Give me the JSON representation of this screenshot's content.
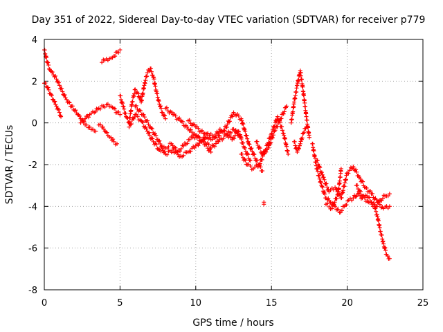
{
  "chart_data": {
    "type": "scatter",
    "title": "Day 351 of 2022, Sidereal Day-to-day VTEC variation (SDTVAR) for receiver p779",
    "xlabel": "GPS time / hours",
    "ylabel": "SDTVAR / TECUs",
    "xlim": [
      0,
      25
    ],
    "ylim": [
      -8,
      4
    ],
    "xticks": [
      0,
      5,
      10,
      15,
      20,
      25
    ],
    "yticks": [
      -8,
      -6,
      -4,
      -2,
      0,
      2,
      4
    ],
    "grid": true,
    "marker": "+",
    "color": "#ff0000",
    "series": [
      {
        "name": "trace-a",
        "x": [
          0.0,
          0.2,
          0.4,
          0.6,
          0.8,
          1.0,
          1.2,
          1.4,
          1.6,
          1.8,
          2.0,
          2.2,
          2.4,
          2.6,
          2.8,
          3.0,
          3.2,
          3.4
        ],
        "y": [
          3.5,
          2.9,
          2.5,
          2.3,
          2.1,
          1.8,
          1.5,
          1.2,
          1.0,
          0.8,
          0.6,
          0.4,
          0.2,
          0.0,
          -0.1,
          -0.2,
          -0.3,
          -0.4
        ]
      },
      {
        "name": "trace-b",
        "x": [
          0.0,
          0.2,
          0.4,
          0.6,
          0.8,
          1.0,
          1.1
        ],
        "y": [
          1.9,
          1.7,
          1.4,
          1.1,
          0.8,
          0.5,
          0.3
        ]
      },
      {
        "name": "trace-c",
        "x": [
          2.4,
          2.7,
          3.0,
          3.3,
          3.6,
          3.9,
          4.2,
          4.4,
          4.6,
          4.8,
          5.0
        ],
        "y": [
          0.0,
          0.2,
          0.4,
          0.5,
          0.7,
          0.8,
          0.9,
          0.8,
          0.7,
          0.5,
          0.4
        ]
      },
      {
        "name": "trace-d",
        "x": [
          3.6,
          3.8,
          4.0,
          4.2,
          4.4,
          4.6,
          4.8
        ],
        "y": [
          -0.1,
          -0.2,
          -0.4,
          -0.6,
          -0.7,
          -0.9,
          -1.0
        ]
      },
      {
        "name": "trace-e",
        "x": [
          3.8,
          4.0,
          4.2,
          4.4,
          4.6,
          4.8,
          5.0
        ],
        "y": [
          2.9,
          3.0,
          3.0,
          3.1,
          3.2,
          3.4,
          3.5
        ]
      },
      {
        "name": "trace-f",
        "x": [
          5.0,
          5.2,
          5.4,
          5.6,
          5.8,
          6.0,
          6.2,
          6.4,
          6.6,
          6.8,
          7.0,
          7.2,
          7.4,
          7.6,
          7.8,
          8.0
        ],
        "y": [
          1.3,
          0.8,
          0.3,
          0.0,
          1.0,
          1.6,
          1.4,
          1.0,
          1.8,
          2.4,
          2.6,
          2.2,
          1.5,
          0.9,
          0.5,
          0.2
        ]
      },
      {
        "name": "trace-g",
        "x": [
          5.6,
          6.0,
          6.4,
          6.8,
          7.2,
          7.6,
          8.0,
          8.4,
          8.8,
          9.2,
          9.6,
          10.0,
          10.4,
          10.8,
          11.2,
          11.6,
          12.0,
          12.4,
          12.8,
          13.2,
          13.6
        ],
        "y": [
          -0.2,
          0.4,
          0.1,
          -0.4,
          -0.9,
          -1.3,
          -1.2,
          -1.0,
          -1.4,
          -1.1,
          -0.8,
          -0.6,
          -0.9,
          -0.5,
          -0.7,
          -0.3,
          -0.5,
          -0.8,
          -0.4,
          -1.2,
          -1.8
        ]
      },
      {
        "name": "trace-h",
        "x": [
          6.0,
          6.5,
          7.0,
          7.5,
          8.0,
          8.5,
          9.0,
          9.5,
          10.0,
          10.5,
          11.0,
          11.5,
          12.0,
          12.5,
          13.0
        ],
        "y": [
          0.8,
          0.4,
          -0.2,
          -0.8,
          -1.5,
          -1.3,
          -1.6,
          -1.4,
          -1.1,
          -0.8,
          -1.2,
          -0.9,
          -0.6,
          -0.3,
          -0.7
        ]
      },
      {
        "name": "trace-i",
        "x": [
          8.0,
          8.5,
          9.0,
          9.5,
          10.0,
          10.5,
          11.0
        ],
        "y": [
          0.7,
          0.4,
          0.1,
          -0.3,
          -0.6,
          -0.9,
          -1.4
        ]
      },
      {
        "name": "trace-j",
        "x": [
          9.5,
          10.0,
          10.5,
          11.0,
          11.5,
          12.0,
          12.5,
          13.0,
          13.5,
          14.0,
          14.4
        ],
        "y": [
          0.1,
          -0.2,
          -0.5,
          -0.8,
          -0.6,
          -0.2,
          0.5,
          0.2,
          -1.0,
          -1.8,
          -2.3
        ]
      },
      {
        "name": "trace-k",
        "x": [
          13.0,
          13.4,
          13.8,
          14.2,
          14.6,
          15.0,
          15.4,
          15.8,
          16.1
        ],
        "y": [
          -1.5,
          -2.0,
          -2.2,
          -2.0,
          -1.3,
          -0.5,
          0.3,
          -0.5,
          -1.5
        ]
      },
      {
        "name": "trace-l",
        "x": [
          14.0,
          14.4,
          14.8,
          15.2,
          15.6,
          16.0
        ],
        "y": [
          -0.9,
          -1.5,
          -1.2,
          -0.4,
          0.2,
          0.8
        ]
      },
      {
        "name": "trace-m",
        "x": [
          14.5,
          14.5
        ],
        "y": [
          -3.8,
          -3.9
        ]
      },
      {
        "name": "trace-n",
        "x": [
          16.3,
          16.5,
          16.7,
          16.9,
          17.1,
          17.3,
          17.5
        ],
        "y": [
          0.0,
          1.0,
          1.8,
          2.5,
          1.5,
          0.3,
          -0.7
        ]
      },
      {
        "name": "trace-o",
        "x": [
          16.5,
          16.7,
          16.9,
          17.1,
          17.3
        ],
        "y": [
          -0.9,
          -1.4,
          -1.0,
          -0.5,
          -0.2
        ]
      },
      {
        "name": "trace-p",
        "x": [
          17.7,
          18.0,
          18.3,
          18.6,
          18.9,
          19.2,
          19.5,
          19.8,
          20.1,
          20.4,
          20.7,
          21.0,
          21.3,
          21.6,
          21.9,
          22.2,
          22.5,
          22.8
        ],
        "y": [
          -1.0,
          -2.2,
          -3.0,
          -3.6,
          -3.8,
          -4.0,
          -4.3,
          -4.0,
          -3.7,
          -3.6,
          -3.4,
          -3.6,
          -3.5,
          -3.8,
          -4.0,
          -3.7,
          -3.5,
          -3.4
        ]
      },
      {
        "name": "trace-q",
        "x": [
          18.0,
          18.4,
          18.8,
          19.2,
          19.6,
          20.0,
          20.4,
          20.8,
          21.2,
          21.6,
          22.0,
          22.4,
          22.8
        ],
        "y": [
          -1.8,
          -2.6,
          -3.3,
          -3.1,
          -3.6,
          -2.4,
          -2.1,
          -2.6,
          -3.1,
          -3.4,
          -3.8,
          -4.1,
          -4.0
        ]
      },
      {
        "name": "trace-r",
        "x": [
          18.6,
          19.0,
          19.4,
          19.6
        ],
        "y": [
          -3.9,
          -4.1,
          -3.4,
          -2.2
        ]
      },
      {
        "name": "trace-s",
        "x": [
          20.6,
          21.0,
          21.4,
          21.8,
          22.0,
          22.2,
          22.4,
          22.6,
          22.8
        ],
        "y": [
          -3.0,
          -3.5,
          -3.8,
          -4.0,
          -4.5,
          -5.2,
          -5.8,
          -6.3,
          -6.5
        ]
      }
    ]
  }
}
